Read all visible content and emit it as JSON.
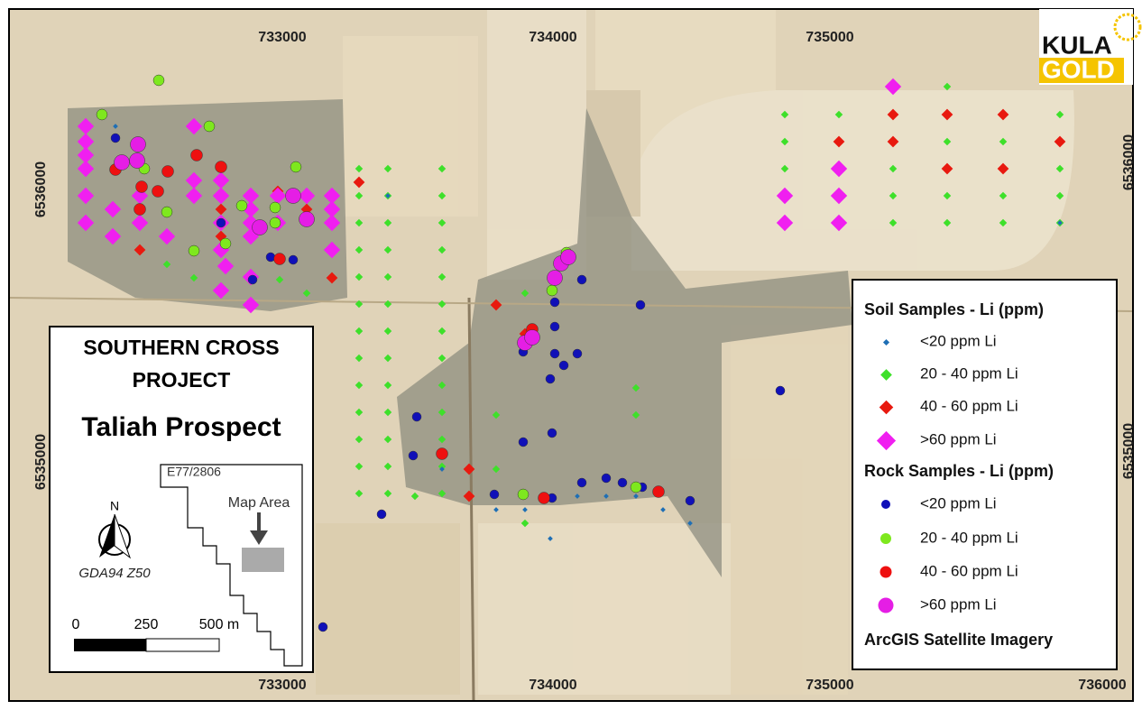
{
  "logo": {
    "line1": "KULA",
    "line2": "GOLD"
  },
  "grid_labels": {
    "top": [
      "733000",
      "734000",
      "735000"
    ],
    "bottom": [
      "733000",
      "734000",
      "735000",
      "736000"
    ],
    "left": [
      "6536000",
      "6535000"
    ],
    "right": [
      "6536000",
      "6535000"
    ]
  },
  "title_box": {
    "title_lines": [
      "SOUTHERN CROSS",
      "PROJECT"
    ],
    "prospect": "Taliah Prospect",
    "inset_label": "E77/2806",
    "inset_area": "Map Area",
    "north": "N",
    "datum": "GDA94 Z50",
    "scale_labels": [
      "0",
      "250",
      "500 m"
    ]
  },
  "legend": {
    "soil_title": "Soil Samples - Li (ppm)",
    "soil_items": [
      "<20 ppm Li",
      "20 - 40 ppm Li",
      "40 - 60 ppm Li",
      ">60 ppm Li"
    ],
    "rock_title": "Rock Samples - Li (ppm)",
    "rock_items": [
      "<20 ppm Li",
      "20 - 40 ppm Li",
      "40 - 60 ppm Li",
      ">60 ppm Li"
    ],
    "source": "ArcGIS Satellite Imagery"
  }
}
